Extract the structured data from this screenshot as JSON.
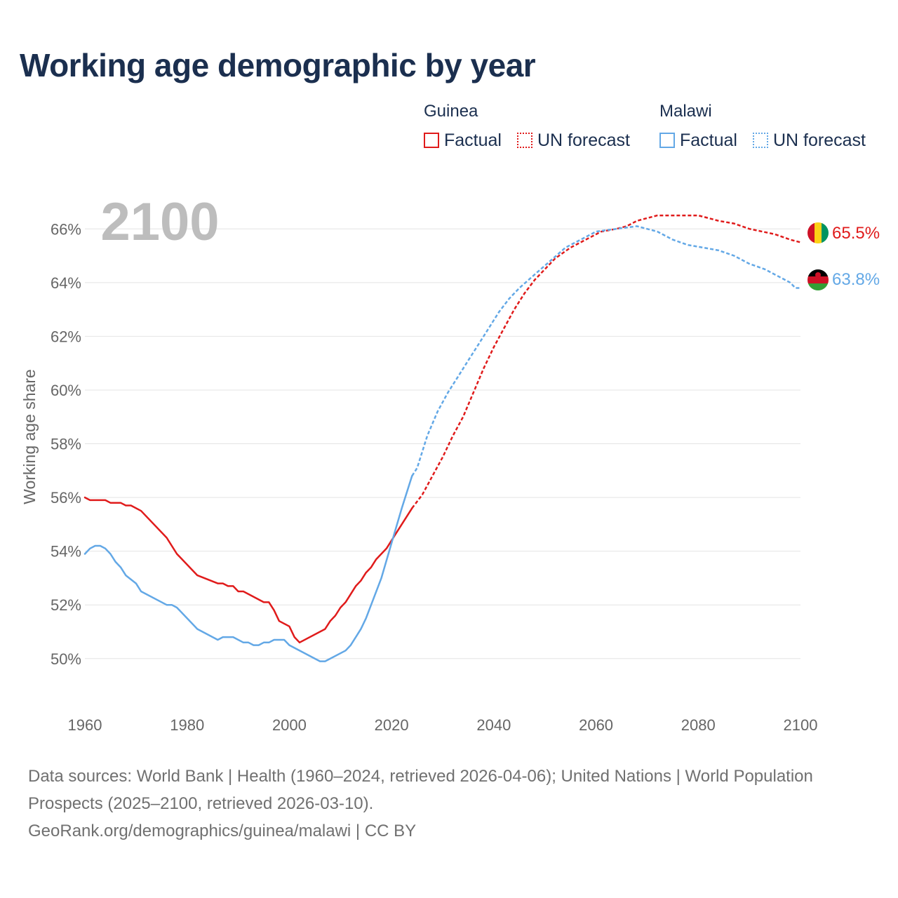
{
  "header": {
    "title": "Working age demographic by year"
  },
  "legend": {
    "groups": [
      {
        "name": "Guinea",
        "color": "#e01b1b",
        "factual_label": "Factual",
        "forecast_label": "UN forecast"
      },
      {
        "name": "Malawi",
        "color": "#63a8e6",
        "factual_label": "Factual",
        "forecast_label": "UN forecast"
      }
    ]
  },
  "chart_data": {
    "type": "line",
    "title": "Working age demographic by year",
    "year_watermark": "2100",
    "xlabel": "",
    "ylabel": "Working age share",
    "xlim": [
      1960,
      2100
    ],
    "ylim": [
      48.4,
      67.6
    ],
    "x_ticks": [
      1960,
      1980,
      2000,
      2020,
      2040,
      2060,
      2080,
      2100
    ],
    "x_tick_labels": [
      "1960",
      "1980",
      "2000",
      "2020",
      "2040",
      "2060",
      "2080",
      "2100"
    ],
    "y_ticks": [
      50,
      52,
      54,
      56,
      58,
      60,
      62,
      64,
      66
    ],
    "y_tick_labels": [
      "50%",
      "52%",
      "54%",
      "56%",
      "58%",
      "60%",
      "62%",
      "64%",
      "66%"
    ],
    "grid": true,
    "forecast_start_year": 2024,
    "series": [
      {
        "name": "Guinea",
        "color": "#e01b1b",
        "end_label": "65.5%",
        "flag_icon": "guinea-flag-icon",
        "points": [
          [
            1960,
            56.0
          ],
          [
            1961,
            55.9
          ],
          [
            1964,
            55.9
          ],
          [
            1965,
            55.8
          ],
          [
            1967,
            55.8
          ],
          [
            1968,
            55.7
          ],
          [
            1969,
            55.7
          ],
          [
            1971,
            55.5
          ],
          [
            1976,
            54.5
          ],
          [
            1978,
            53.9
          ],
          [
            1982,
            53.1
          ],
          [
            1986,
            52.8
          ],
          [
            1987,
            52.8
          ],
          [
            1988,
            52.7
          ],
          [
            1989,
            52.7
          ],
          [
            1990,
            52.5
          ],
          [
            1991,
            52.5
          ],
          [
            1995,
            52.1
          ],
          [
            1996,
            52.1
          ],
          [
            1997,
            51.8
          ],
          [
            1998,
            51.4
          ],
          [
            2000,
            51.2
          ],
          [
            2001,
            50.8
          ],
          [
            2002,
            50.6
          ],
          [
            2007,
            51.1
          ],
          [
            2008,
            51.4
          ],
          [
            2009,
            51.6
          ],
          [
            2010,
            51.9
          ],
          [
            2011,
            52.1
          ],
          [
            2013,
            52.7
          ],
          [
            2014,
            52.9
          ],
          [
            2015,
            53.2
          ],
          [
            2016,
            53.4
          ],
          [
            2017,
            53.7
          ],
          [
            2019,
            54.1
          ],
          [
            2021,
            54.7
          ],
          [
            2024,
            55.6
          ],
          [
            2026,
            56.1
          ],
          [
            2028,
            56.8
          ],
          [
            2030,
            57.5
          ],
          [
            2032,
            58.3
          ],
          [
            2034,
            59.0
          ],
          [
            2036,
            59.9
          ],
          [
            2038,
            60.8
          ],
          [
            2040,
            61.6
          ],
          [
            2042,
            62.3
          ],
          [
            2044,
            63.0
          ],
          [
            2046,
            63.6
          ],
          [
            2048,
            64.1
          ],
          [
            2050,
            64.5
          ],
          [
            2052,
            64.9
          ],
          [
            2055,
            65.3
          ],
          [
            2058,
            65.6
          ],
          [
            2061,
            65.9
          ],
          [
            2064,
            66.0
          ],
          [
            2066,
            66.1
          ],
          [
            2068,
            66.3
          ],
          [
            2070,
            66.4
          ],
          [
            2072,
            66.5
          ],
          [
            2080,
            66.5
          ],
          [
            2082,
            66.4
          ],
          [
            2084,
            66.3
          ],
          [
            2087,
            66.2
          ],
          [
            2090,
            66.0
          ],
          [
            2095,
            65.8
          ],
          [
            2098,
            65.6
          ],
          [
            2100,
            65.5
          ]
        ]
      },
      {
        "name": "Malawi",
        "color": "#63a8e6",
        "end_label": "63.8%",
        "flag_icon": "malawi-flag-icon",
        "points": [
          [
            1960,
            53.9
          ],
          [
            1961,
            54.1
          ],
          [
            1962,
            54.2
          ],
          [
            1963,
            54.2
          ],
          [
            1964,
            54.1
          ],
          [
            1965,
            53.9
          ],
          [
            1966,
            53.6
          ],
          [
            1967,
            53.4
          ],
          [
            1968,
            53.1
          ],
          [
            1970,
            52.8
          ],
          [
            1971,
            52.5
          ],
          [
            1976,
            52.0
          ],
          [
            1977,
            52.0
          ],
          [
            1978,
            51.9
          ],
          [
            1982,
            51.1
          ],
          [
            1986,
            50.7
          ],
          [
            1987,
            50.8
          ],
          [
            1989,
            50.8
          ],
          [
            1991,
            50.6
          ],
          [
            1992,
            50.6
          ],
          [
            1993,
            50.5
          ],
          [
            1994,
            50.5
          ],
          [
            1995,
            50.6
          ],
          [
            1996,
            50.6
          ],
          [
            1997,
            50.7
          ],
          [
            1999,
            50.7
          ],
          [
            2000,
            50.5
          ],
          [
            2006,
            49.9
          ],
          [
            2007,
            49.9
          ],
          [
            2011,
            50.3
          ],
          [
            2012,
            50.5
          ],
          [
            2014,
            51.1
          ],
          [
            2015,
            51.5
          ],
          [
            2016,
            52.0
          ],
          [
            2018,
            53.0
          ],
          [
            2020,
            54.3
          ],
          [
            2022,
            55.6
          ],
          [
            2024,
            56.8
          ],
          [
            2025,
            57.1
          ],
          [
            2027,
            58.3
          ],
          [
            2029,
            59.2
          ],
          [
            2031,
            59.9
          ],
          [
            2033,
            60.5
          ],
          [
            2035,
            61.1
          ],
          [
            2037,
            61.7
          ],
          [
            2039,
            62.3
          ],
          [
            2041,
            62.9
          ],
          [
            2043,
            63.4
          ],
          [
            2045,
            63.8
          ],
          [
            2048,
            64.3
          ],
          [
            2051,
            64.8
          ],
          [
            2054,
            65.3
          ],
          [
            2057,
            65.6
          ],
          [
            2060,
            65.9
          ],
          [
            2064,
            66.0
          ],
          [
            2068,
            66.1
          ],
          [
            2072,
            65.9
          ],
          [
            2075,
            65.6
          ],
          [
            2078,
            65.4
          ],
          [
            2081,
            65.3
          ],
          [
            2084,
            65.2
          ],
          [
            2087,
            65.0
          ],
          [
            2090,
            64.7
          ],
          [
            2093,
            64.5
          ],
          [
            2096,
            64.2
          ],
          [
            2098,
            64.0
          ],
          [
            2099,
            63.8
          ],
          [
            2100,
            63.8
          ]
        ]
      }
    ]
  },
  "footer": {
    "line1": "Data sources: World Bank | Health (1960–2024, retrieved 2026-04-06); United Nations | World Population Prospects (2025–2100, retrieved 2026-03-10).",
    "line2": "GeoRank.org/demographics/guinea/malawi | CC BY"
  }
}
